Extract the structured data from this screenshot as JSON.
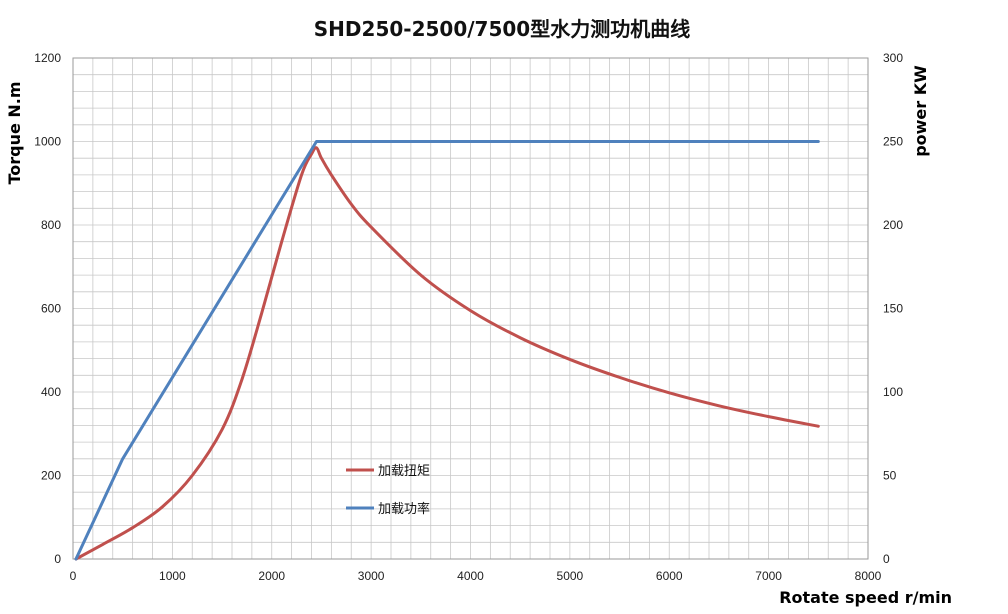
{
  "chart_data": {
    "type": "line",
    "title": "SHD250-2500/7500型水力测功机曲线",
    "xlabel": "Rotate speed r/min",
    "ylabel": "Torque N.m",
    "y2label": "power KW",
    "xlim": [
      0,
      8000
    ],
    "ylim": [
      0,
      1200
    ],
    "y2lim": [
      0,
      300
    ],
    "x_ticks": [
      0,
      1000,
      2000,
      3000,
      4000,
      5000,
      6000,
      7000,
      8000
    ],
    "y_ticks": [
      0,
      200,
      400,
      600,
      800,
      1000,
      1200
    ],
    "y2_ticks": [
      0,
      50,
      100,
      150,
      200,
      250,
      300
    ],
    "grid": true,
    "legend_position": "center-left inside plot",
    "series": [
      {
        "name": "加载扭矩",
        "axis": "left",
        "color": "#c0504d",
        "x": [
          30,
          300,
          600,
          900,
          1200,
          1500,
          1700,
          1900,
          2100,
          2300,
          2400,
          2450,
          2500,
          2600,
          2800,
          3000,
          3500,
          4000,
          4500,
          5000,
          5500,
          6000,
          6500,
          7000,
          7500
        ],
        "y": [
          0,
          35,
          75,
          125,
          200,
          310,
          430,
          590,
          760,
          920,
          970,
          985,
          960,
          920,
          850,
          795,
          680,
          595,
          530,
          478,
          435,
          398,
          367,
          341,
          318
        ]
      },
      {
        "name": "加载功率",
        "axis": "right",
        "color": "#4f81bd",
        "x": [
          30,
          500,
          2450,
          7500
        ],
        "y": [
          0,
          60,
          250,
          250
        ]
      }
    ]
  }
}
